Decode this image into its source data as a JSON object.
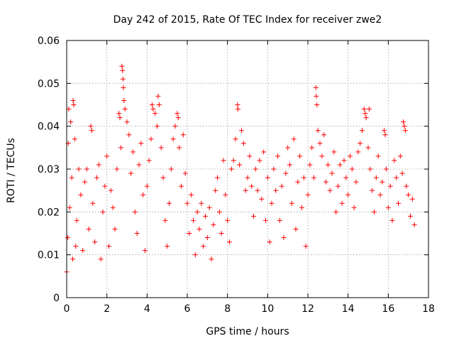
{
  "chart_data": {
    "type": "scatter",
    "title": "Day 242 of 2015, Rate Of TEC Index for receiver zwe2",
    "xlabel": "GPS time / hours",
    "ylabel": "ROTI / TECUs",
    "xlim": [
      0,
      18
    ],
    "ylim": [
      0,
      0.06
    ],
    "xticks": [
      0,
      2,
      4,
      6,
      8,
      10,
      12,
      14,
      16,
      18
    ],
    "xtick_labels": [
      "0",
      "2",
      "4",
      "6",
      "8",
      "10",
      "12",
      "14",
      "16",
      "18"
    ],
    "yticks": [
      0,
      0.01,
      0.02,
      0.03,
      0.04,
      0.05,
      0.06
    ],
    "ytick_labels": [
      "0",
      "0.01",
      "0.02",
      "0.03",
      "0.04",
      "0.05",
      "0.06"
    ],
    "grid": true,
    "marker": "plus",
    "color": "#ff0000",
    "series": [
      {
        "name": "ROTI",
        "points": [
          [
            0.0,
            0.006
          ],
          [
            0.05,
            0.014
          ],
          [
            0.08,
            0.036
          ],
          [
            0.1,
            0.044
          ],
          [
            0.15,
            0.021
          ],
          [
            0.2,
            0.041
          ],
          [
            0.25,
            0.028
          ],
          [
            0.3,
            0.009
          ],
          [
            0.32,
            0.046
          ],
          [
            0.35,
            0.045
          ],
          [
            0.4,
            0.037
          ],
          [
            0.45,
            0.012
          ],
          [
            0.5,
            0.018
          ],
          [
            0.6,
            0.03
          ],
          [
            0.7,
            0.024
          ],
          [
            0.8,
            0.011
          ],
          [
            0.9,
            0.027
          ],
          [
            1.0,
            0.03
          ],
          [
            1.1,
            0.016
          ],
          [
            1.2,
            0.04
          ],
          [
            1.25,
            0.039
          ],
          [
            1.3,
            0.022
          ],
          [
            1.4,
            0.013
          ],
          [
            1.5,
            0.028
          ],
          [
            1.6,
            0.031
          ],
          [
            1.7,
            0.009
          ],
          [
            1.8,
            0.02
          ],
          [
            1.9,
            0.026
          ],
          [
            2.0,
            0.033
          ],
          [
            2.1,
            0.012
          ],
          [
            2.2,
            0.025
          ],
          [
            2.3,
            0.021
          ],
          [
            2.4,
            0.016
          ],
          [
            2.5,
            0.03
          ],
          [
            2.6,
            0.043
          ],
          [
            2.65,
            0.042
          ],
          [
            2.7,
            0.035
          ],
          [
            2.75,
            0.054
          ],
          [
            2.78,
            0.053
          ],
          [
            2.8,
            0.051
          ],
          [
            2.82,
            0.049
          ],
          [
            2.85,
            0.046
          ],
          [
            2.9,
            0.044
          ],
          [
            3.0,
            0.041
          ],
          [
            3.1,
            0.038
          ],
          [
            3.2,
            0.029
          ],
          [
            3.3,
            0.034
          ],
          [
            3.4,
            0.02
          ],
          [
            3.5,
            0.015
          ],
          [
            3.6,
            0.031
          ],
          [
            3.7,
            0.036
          ],
          [
            3.8,
            0.024
          ],
          [
            3.9,
            0.011
          ],
          [
            4.0,
            0.026
          ],
          [
            4.1,
            0.032
          ],
          [
            4.2,
            0.037
          ],
          [
            4.25,
            0.045
          ],
          [
            4.3,
            0.044
          ],
          [
            4.4,
            0.043
          ],
          [
            4.5,
            0.04
          ],
          [
            4.55,
            0.047
          ],
          [
            4.6,
            0.045
          ],
          [
            4.7,
            0.035
          ],
          [
            4.8,
            0.028
          ],
          [
            4.9,
            0.018
          ],
          [
            5.0,
            0.012
          ],
          [
            5.1,
            0.022
          ],
          [
            5.2,
            0.03
          ],
          [
            5.3,
            0.037
          ],
          [
            5.4,
            0.04
          ],
          [
            5.5,
            0.043
          ],
          [
            5.55,
            0.042
          ],
          [
            5.6,
            0.035
          ],
          [
            5.7,
            0.026
          ],
          [
            5.8,
            0.038
          ],
          [
            5.9,
            0.029
          ],
          [
            6.0,
            0.022
          ],
          [
            6.1,
            0.015
          ],
          [
            6.2,
            0.024
          ],
          [
            6.3,
            0.018
          ],
          [
            6.4,
            0.01
          ],
          [
            6.5,
            0.02
          ],
          [
            6.6,
            0.016
          ],
          [
            6.7,
            0.022
          ],
          [
            6.8,
            0.012
          ],
          [
            6.9,
            0.019
          ],
          [
            7.0,
            0.014
          ],
          [
            7.1,
            0.021
          ],
          [
            7.2,
            0.009
          ],
          [
            7.3,
            0.017
          ],
          [
            7.4,
            0.025
          ],
          [
            7.5,
            0.028
          ],
          [
            7.6,
            0.02
          ],
          [
            7.7,
            0.015
          ],
          [
            7.8,
            0.032
          ],
          [
            7.9,
            0.024
          ],
          [
            8.0,
            0.018
          ],
          [
            8.1,
            0.013
          ],
          [
            8.2,
            0.03
          ],
          [
            8.3,
            0.032
          ],
          [
            8.4,
            0.037
          ],
          [
            8.5,
            0.045
          ],
          [
            8.52,
            0.044
          ],
          [
            8.6,
            0.031
          ],
          [
            8.7,
            0.039
          ],
          [
            8.8,
            0.036
          ],
          [
            8.9,
            0.025
          ],
          [
            9.0,
            0.028
          ],
          [
            9.1,
            0.033
          ],
          [
            9.2,
            0.026
          ],
          [
            9.3,
            0.019
          ],
          [
            9.4,
            0.03
          ],
          [
            9.5,
            0.025
          ],
          [
            9.6,
            0.032
          ],
          [
            9.7,
            0.023
          ],
          [
            9.8,
            0.034
          ],
          [
            9.9,
            0.018
          ],
          [
            10.0,
            0.028
          ],
          [
            10.1,
            0.013
          ],
          [
            10.2,
            0.022
          ],
          [
            10.3,
            0.03
          ],
          [
            10.4,
            0.025
          ],
          [
            10.5,
            0.033
          ],
          [
            10.6,
            0.018
          ],
          [
            10.7,
            0.026
          ],
          [
            10.8,
            0.014
          ],
          [
            10.9,
            0.029
          ],
          [
            11.0,
            0.035
          ],
          [
            11.1,
            0.031
          ],
          [
            11.2,
            0.022
          ],
          [
            11.3,
            0.037
          ],
          [
            11.4,
            0.016
          ],
          [
            11.5,
            0.027
          ],
          [
            11.6,
            0.033
          ],
          [
            11.7,
            0.021
          ],
          [
            11.8,
            0.028
          ],
          [
            11.9,
            0.012
          ],
          [
            12.0,
            0.024
          ],
          [
            12.1,
            0.031
          ],
          [
            12.2,
            0.035
          ],
          [
            12.3,
            0.028
          ],
          [
            12.4,
            0.049
          ],
          [
            12.42,
            0.047
          ],
          [
            12.45,
            0.045
          ],
          [
            12.5,
            0.039
          ],
          [
            12.6,
            0.036
          ],
          [
            12.7,
            0.033
          ],
          [
            12.8,
            0.038
          ],
          [
            12.9,
            0.027
          ],
          [
            13.0,
            0.031
          ],
          [
            13.1,
            0.025
          ],
          [
            13.2,
            0.029
          ],
          [
            13.3,
            0.034
          ],
          [
            13.4,
            0.02
          ],
          [
            13.5,
            0.026
          ],
          [
            13.6,
            0.031
          ],
          [
            13.7,
            0.022
          ],
          [
            13.8,
            0.032
          ],
          [
            13.9,
            0.028
          ],
          [
            14.0,
            0.024
          ],
          [
            14.1,
            0.033
          ],
          [
            14.2,
            0.03
          ],
          [
            14.3,
            0.021
          ],
          [
            14.4,
            0.027
          ],
          [
            14.5,
            0.034
          ],
          [
            14.6,
            0.036
          ],
          [
            14.7,
            0.039
          ],
          [
            14.8,
            0.044
          ],
          [
            14.85,
            0.043
          ],
          [
            14.9,
            0.042
          ],
          [
            15.0,
            0.035
          ],
          [
            15.05,
            0.044
          ],
          [
            15.1,
            0.03
          ],
          [
            15.2,
            0.025
          ],
          [
            15.3,
            0.02
          ],
          [
            15.4,
            0.028
          ],
          [
            15.5,
            0.033
          ],
          [
            15.6,
            0.024
          ],
          [
            15.7,
            0.027
          ],
          [
            15.8,
            0.039
          ],
          [
            15.85,
            0.038
          ],
          [
            15.9,
            0.03
          ],
          [
            16.0,
            0.021
          ],
          [
            16.1,
            0.026
          ],
          [
            16.2,
            0.018
          ],
          [
            16.3,
            0.032
          ],
          [
            16.4,
            0.028
          ],
          [
            16.5,
            0.022
          ],
          [
            16.6,
            0.033
          ],
          [
            16.7,
            0.029
          ],
          [
            16.75,
            0.041
          ],
          [
            16.8,
            0.04
          ],
          [
            16.85,
            0.039
          ],
          [
            16.9,
            0.026
          ],
          [
            17.0,
            0.024
          ],
          [
            17.1,
            0.019
          ],
          [
            17.2,
            0.023
          ],
          [
            17.3,
            0.017
          ]
        ]
      }
    ]
  }
}
